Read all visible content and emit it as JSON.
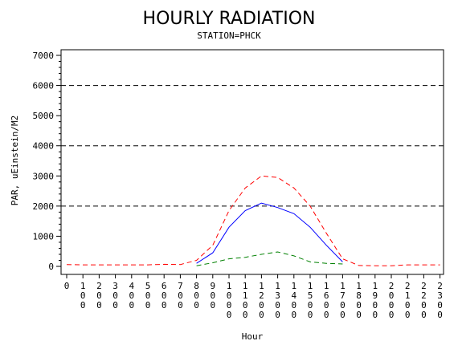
{
  "chart_data": {
    "type": "line",
    "title": "HOURLY RADIATION",
    "subtitle": "STATION=PHCK",
    "xlabel": "Hour",
    "ylabel": "PAR, uEinstein/M2",
    "ylim": [
      0,
      7000
    ],
    "y_ticks": [
      0,
      1000,
      2000,
      3000,
      4000,
      5000,
      6000,
      7000
    ],
    "x_ticks": [
      "0",
      "100",
      "200",
      "300",
      "400",
      "500",
      "600",
      "700",
      "800",
      "900",
      "1000",
      "1100",
      "1200",
      "1300",
      "1400",
      "1500",
      "1600",
      "1700",
      "1800",
      "1900",
      "2000",
      "2100",
      "2200",
      "2300"
    ],
    "reference_lines": [
      2000,
      4000,
      6000
    ],
    "series": [
      {
        "color": "#ff0000",
        "dash": "dashed",
        "x": [
          0,
          100,
          200,
          300,
          400,
          500,
          600,
          700,
          800,
          900,
          1000,
          1100,
          1200,
          1300,
          1400,
          1500,
          1600,
          1700,
          1800,
          1900,
          2000,
          2100,
          2200,
          2300
        ],
        "values": [
          60,
          50,
          50,
          50,
          50,
          50,
          70,
          60,
          200,
          700,
          1850,
          2600,
          3000,
          2950,
          2600,
          2000,
          1100,
          250,
          30,
          20,
          20,
          50,
          50,
          50
        ]
      },
      {
        "color": "#0000ff",
        "dash": "solid",
        "x": [
          800,
          900,
          1000,
          1100,
          1200,
          1300,
          1400,
          1500,
          1600,
          1700
        ],
        "values": [
          100,
          450,
          1300,
          1850,
          2100,
          1950,
          1750,
          1300,
          700,
          150
        ]
      },
      {
        "color": "#008000",
        "dash": "dashed",
        "x": [
          800,
          900,
          1000,
          1100,
          1200,
          1300,
          1400,
          1500,
          1600,
          1700
        ],
        "values": [
          20,
          120,
          250,
          300,
          400,
          480,
          350,
          150,
          100,
          80
        ]
      }
    ]
  }
}
